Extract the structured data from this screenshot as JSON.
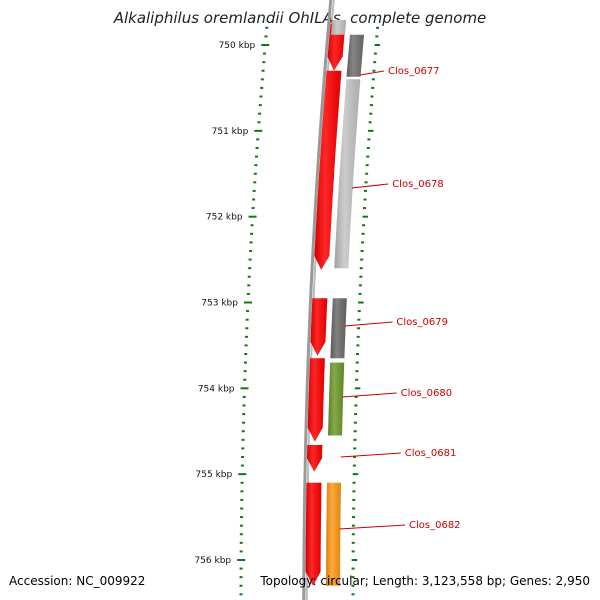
{
  "title": "Alkaliphilus oremlandii OhILAs, complete genome",
  "accession": "Accession: NC_009922",
  "info": "Topology: circular; Length: 3,123,558 bp; Genes: 2,950",
  "scale": {
    "start_kbp": 749.6,
    "end_kbp": 756.4,
    "labels": [
      "750 kbp",
      "751 kbp",
      "752 kbp",
      "753 kbp",
      "754 kbp",
      "755 kbp",
      "756 kbp"
    ]
  },
  "colors": {
    "forward_cds": "#ff0000",
    "backbone": "#888888",
    "tick": "#117711",
    "label": "#cc0000"
  },
  "forward_cds": [
    {
      "start": 749.6,
      "end": 749.75
    },
    {
      "start": 749.75,
      "end": 750.3
    },
    {
      "start": 750.3,
      "end": 752.62
    },
    {
      "start": 752.95,
      "end": 753.62
    },
    {
      "start": 753.65,
      "end": 754.62
    },
    {
      "start": 754.66,
      "end": 754.97
    },
    {
      "start": 755.1,
      "end": 756.3
    }
  ],
  "genes": [
    {
      "name": "Clos_0677",
      "start": 749.88,
      "end": 750.37,
      "color": "#707070"
    },
    {
      "name": "Clos_0678",
      "start": 750.4,
      "end": 752.6,
      "color": "#c4c4c4"
    },
    {
      "name": "Clos_0679",
      "start": 752.95,
      "end": 753.65,
      "color": "#6b6b6b"
    },
    {
      "name": "Clos_0680",
      "start": 753.7,
      "end": 754.55,
      "color": "#6e9a2a"
    },
    {
      "name": "Clos_0681",
      "start": null,
      "end": null,
      "color": "#ff0000"
    },
    {
      "name": "Clos_0682",
      "start": 755.1,
      "end": 756.3,
      "color": "#ff9a16"
    }
  ],
  "extra_gray": {
    "start": 749.6,
    "end": 749.88,
    "color": "#c4c4c4"
  }
}
